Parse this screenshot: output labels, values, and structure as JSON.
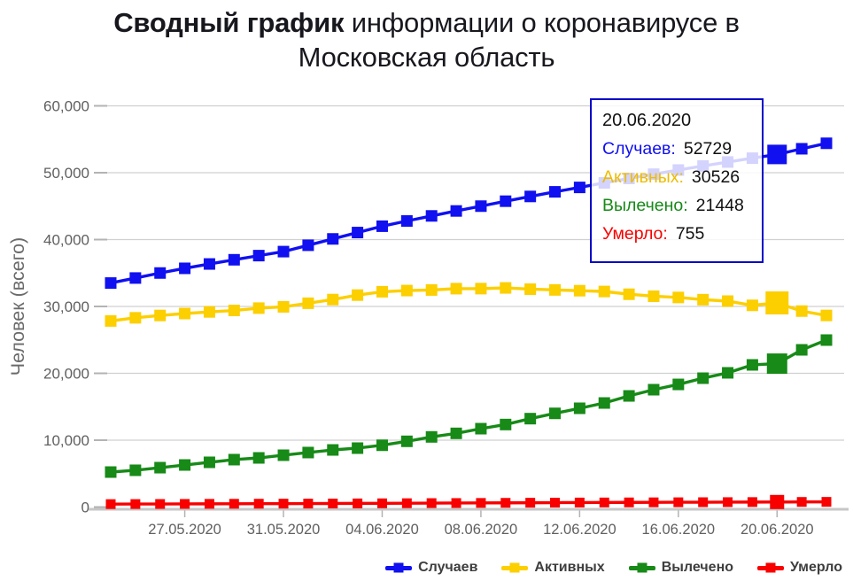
{
  "title": {
    "bold": "Сводный график",
    "rest": " информации о коронавирусе в",
    "line2": "Московская область"
  },
  "y_axis": {
    "title": "Человек (всего)",
    "ticks": [
      "0",
      "10,000",
      "20,000",
      "30,000",
      "40,000",
      "50,000",
      "60,000"
    ]
  },
  "x_axis": {
    "ticks": [
      "27.05.2020",
      "31.05.2020",
      "04.06.2020",
      "08.06.2020",
      "12.06.2020",
      "16.06.2020",
      "20.06.2020"
    ]
  },
  "tooltip": {
    "date": "20.06.2020",
    "rows": [
      {
        "slug": "cases",
        "label": "Случаев:",
        "value": "52729"
      },
      {
        "slug": "active",
        "label": "Активных:",
        "value": "30526"
      },
      {
        "slug": "recovered",
        "label": "Вылечено:",
        "value": "21448"
      },
      {
        "slug": "deaths",
        "label": "Умерло:",
        "value": "755"
      }
    ]
  },
  "legend": [
    {
      "slug": "cases",
      "label": "Случаев"
    },
    {
      "slug": "active",
      "label": "Активных"
    },
    {
      "slug": "recovered",
      "label": "Вылечено"
    },
    {
      "slug": "deaths",
      "label": "Умерло"
    }
  ],
  "colors": {
    "cases": "#1010f0",
    "active": "#fccf00",
    "active_text": "#eebc00",
    "recovered": "#178a17",
    "deaths": "#f80000",
    "tooltip_border": "#0202c8",
    "grid": "#d0d0d0",
    "axis": "#c6c6c6",
    "axis_text": "#606060",
    "title_text": "#17171e"
  },
  "chart_data": {
    "type": "line",
    "title": "Сводный график информации о коронавирусе в Московская область",
    "ylabel": "Человек (всего)",
    "xlabel": "",
    "ylim": [
      0,
      60000
    ],
    "y_tick_step": 10000,
    "grid": true,
    "legend_position": "bottom-right",
    "marker": "square",
    "highlight_index": 27,
    "highlight_date": "20.06.2020",
    "x": [
      "24.05.2020",
      "25.05.2020",
      "26.05.2020",
      "27.05.2020",
      "28.05.2020",
      "29.05.2020",
      "30.05.2020",
      "31.05.2020",
      "01.06.2020",
      "02.06.2020",
      "03.06.2020",
      "04.06.2020",
      "05.06.2020",
      "06.06.2020",
      "07.06.2020",
      "08.06.2020",
      "09.06.2020",
      "10.06.2020",
      "11.06.2020",
      "12.06.2020",
      "13.06.2020",
      "14.06.2020",
      "15.06.2020",
      "16.06.2020",
      "17.06.2020",
      "18.06.2020",
      "19.06.2020",
      "20.06.2020",
      "21.06.2020",
      "22.06.2020"
    ],
    "x_tick_indices": [
      3,
      7,
      11,
      15,
      19,
      23,
      27
    ],
    "series": [
      {
        "name": "Случаев",
        "slug": "cases",
        "color": "#1010f0",
        "values": [
          33500,
          34250,
          35000,
          35700,
          36350,
          36980,
          37600,
          38200,
          39150,
          40100,
          41050,
          42000,
          42780,
          43540,
          44280,
          45000,
          45740,
          46450,
          47140,
          47800,
          48480,
          49140,
          49780,
          50400,
          51010,
          51600,
          52170,
          52729,
          53580,
          54400
        ]
      },
      {
        "name": "Активных",
        "slug": "active",
        "color": "#fccf00",
        "values": [
          27830,
          28300,
          28650,
          28940,
          29180,
          29400,
          29750,
          29940,
          30480,
          31030,
          31695,
          32200,
          32375,
          32460,
          32660,
          32665,
          32770,
          32585,
          32470,
          32355,
          32235,
          31825,
          31525,
          31345,
          31015,
          30795,
          30165,
          30526,
          29305,
          28655
        ]
      },
      {
        "name": "Вылечено",
        "slug": "recovered",
        "color": "#178a17",
        "values": [
          5230,
          5500,
          5890,
          6290,
          6690,
          7090,
          7350,
          7750,
          8150,
          8540,
          8810,
          9240,
          9830,
          10490,
          11020,
          11720,
          12340,
          13220,
          14010,
          14770,
          15560,
          16620,
          17550,
          18340,
          19270,
          20070,
          21260,
          21448,
          23510,
          24970
        ]
      },
      {
        "name": "Умерло",
        "slug": "deaths",
        "color": "#f80000",
        "values": [
          440,
          450,
          460,
          470,
          480,
          490,
          500,
          510,
          520,
          530,
          545,
          560,
          575,
          590,
          600,
          615,
          630,
          645,
          660,
          675,
          685,
          695,
          705,
          715,
          725,
          735,
          745,
          755,
          765,
          775
        ]
      }
    ]
  }
}
